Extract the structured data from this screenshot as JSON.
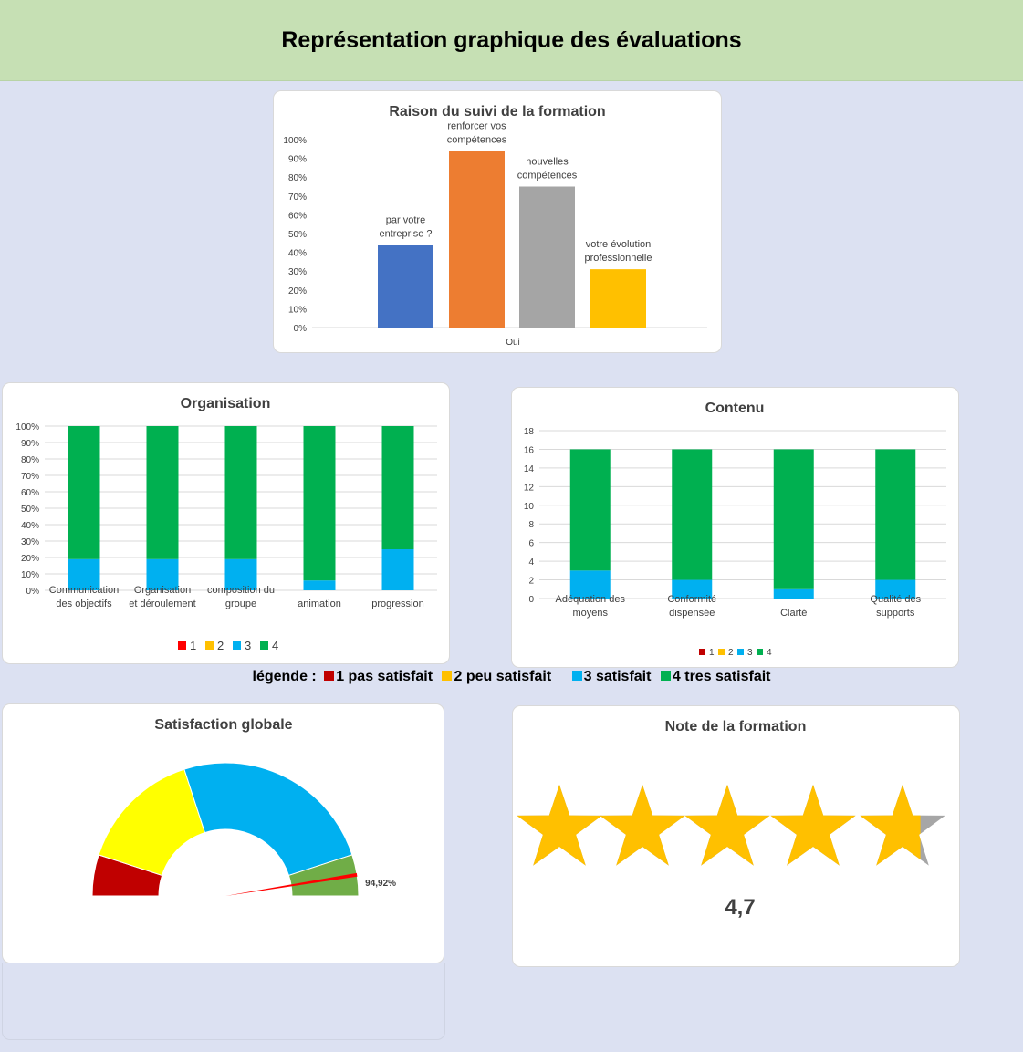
{
  "header": {
    "title": "Représentation graphique des évaluations"
  },
  "legend_line": {
    "prefix": "légende :",
    "items": [
      {
        "label": "1 pas satisfait",
        "color": "#c00000"
      },
      {
        "label": "2 peu satisfait",
        "color": "#ffc000"
      },
      {
        "label": "3 satisfait",
        "color": "#00b0f0"
      },
      {
        "label": "4 tres satisfait",
        "color": "#00b050"
      }
    ]
  },
  "chart_data": [
    {
      "id": "raison",
      "type": "bar",
      "title": "Raison du suivi de la formation",
      "categories": [
        "Oui"
      ],
      "series": [
        {
          "name": "par votre entreprise ?",
          "values": [
            0.44
          ],
          "color": "#4472c4"
        },
        {
          "name": "renforcer vos compétences",
          "values": [
            0.94
          ],
          "color": "#ed7d31"
        },
        {
          "name": "nouvelles compétences",
          "values": [
            0.75
          ],
          "color": "#a5a5a5"
        },
        {
          "name": "votre évolution professionnelle",
          "values": [
            0.31
          ],
          "color": "#ffc000"
        }
      ],
      "ylim": [
        0,
        1
      ],
      "y_ticks": [
        "0%",
        "10%",
        "20%",
        "30%",
        "40%",
        "50%",
        "60%",
        "70%",
        "80%",
        "90%",
        "100%"
      ],
      "grid": false
    },
    {
      "id": "organisation",
      "type": "bar",
      "stacked": true,
      "title": "Organisation",
      "categories": [
        "Communication des objectifs",
        "Organisation et déroulement",
        "composition du groupe",
        "animation",
        "progression"
      ],
      "series": [
        {
          "name": "1",
          "values": [
            0,
            0,
            0,
            0,
            0
          ],
          "color": "#ff0000"
        },
        {
          "name": "2",
          "values": [
            0,
            0,
            0,
            0,
            0
          ],
          "color": "#ffc000"
        },
        {
          "name": "3",
          "values": [
            0.19,
            0.19,
            0.19,
            0.06,
            0.25
          ],
          "color": "#00b0f0"
        },
        {
          "name": "4",
          "values": [
            0.81,
            0.81,
            0.81,
            0.94,
            0.75
          ],
          "color": "#00b050"
        }
      ],
      "ylim": [
        0,
        1
      ],
      "y_ticks": [
        "0%",
        "10%",
        "20%",
        "30%",
        "40%",
        "50%",
        "60%",
        "70%",
        "80%",
        "90%",
        "100%"
      ],
      "grid": true,
      "legend": "bottom"
    },
    {
      "id": "contenu",
      "type": "bar",
      "stacked": true,
      "title": "Contenu",
      "categories": [
        "Adéquation des moyens",
        "Conformité dispensée",
        "Clarté",
        "Qualité des supports"
      ],
      "series": [
        {
          "name": "1",
          "values": [
            0,
            0,
            0,
            0
          ],
          "color": "#c00000"
        },
        {
          "name": "2",
          "values": [
            0,
            0,
            0,
            0
          ],
          "color": "#ffc000"
        },
        {
          "name": "3",
          "values": [
            3,
            2,
            1,
            2
          ],
          "color": "#00b0f0"
        },
        {
          "name": "4",
          "values": [
            13,
            14,
            15,
            14
          ],
          "color": "#00b050"
        }
      ],
      "ylim": [
        0,
        18
      ],
      "y_ticks": [
        "0",
        "2",
        "4",
        "6",
        "8",
        "10",
        "12",
        "14",
        "16",
        "18"
      ],
      "grid": true,
      "legend": "bottom"
    },
    {
      "id": "satisfaction",
      "type": "pie",
      "variant": "gauge",
      "title": "Satisfaction globale",
      "segments": [
        {
          "value": 0.1,
          "color": "#c00000"
        },
        {
          "value": 0.3,
          "color": "#ffff00"
        },
        {
          "value": 0.5,
          "color": "#00b0f0"
        },
        {
          "value": 0.1,
          "color": "#70ad47"
        }
      ],
      "needle_value": 0.9492,
      "needle_label": "94,92%"
    },
    {
      "id": "note",
      "type": "bar",
      "variant": "stars",
      "title": "Note de la formation",
      "value": 4.7,
      "max": 5,
      "value_label": "4,7",
      "star_color": "#ffc000",
      "empty_color": "#a6a6a6"
    }
  ]
}
